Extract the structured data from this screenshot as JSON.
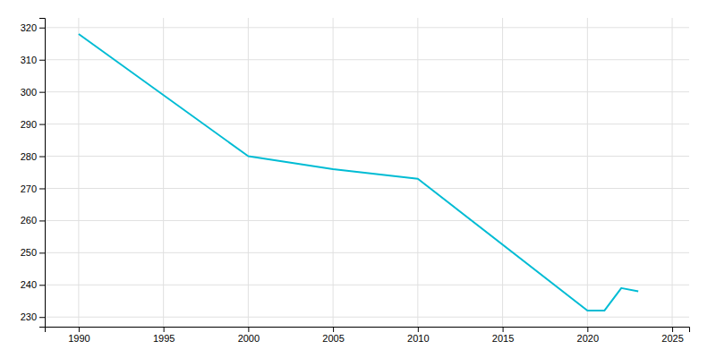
{
  "chart_data": {
    "type": "line",
    "x": [
      1990,
      2000,
      2005,
      2010,
      2020,
      2021,
      2022,
      2023
    ],
    "values": [
      318,
      280,
      276,
      273,
      232,
      232,
      239,
      238
    ],
    "color": "#00BCD4",
    "xlim": [
      1988,
      2026
    ],
    "ylim": [
      227,
      323
    ],
    "xticks": [
      1990,
      1995,
      2000,
      2005,
      2010,
      2015,
      2020,
      2025
    ],
    "yticks": [
      230,
      240,
      250,
      260,
      270,
      280,
      290,
      300,
      310,
      320
    ],
    "grid": true
  }
}
